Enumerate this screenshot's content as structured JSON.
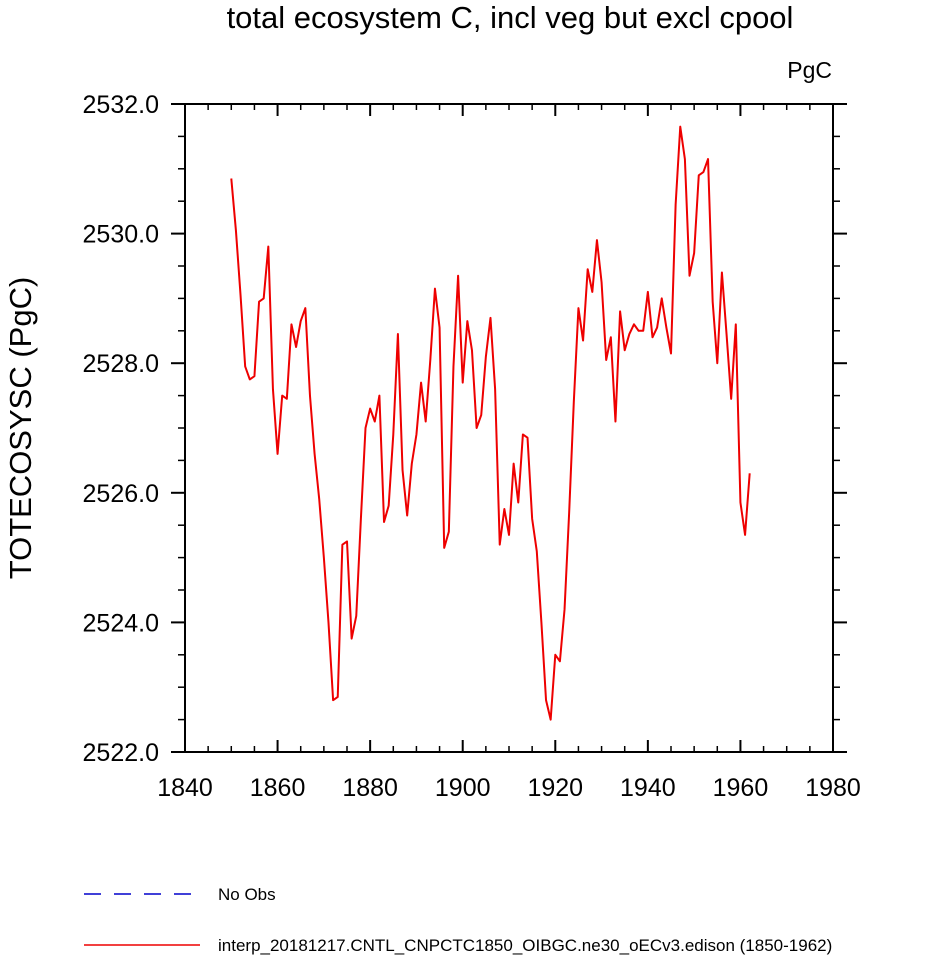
{
  "chart_data": {
    "type": "line",
    "title": "total ecosystem C, incl veg but excl cpool",
    "units_label": "PgC",
    "xlabel": "",
    "ylabel": "TOTECOSYSC  (PgC)",
    "xlim": [
      1840,
      1980
    ],
    "ylim": [
      2522.0,
      2532.0
    ],
    "x_ticks": [
      1840,
      1860,
      1880,
      1900,
      1920,
      1940,
      1960,
      1980
    ],
    "y_ticks": [
      "2522.0",
      "2524.0",
      "2526.0",
      "2528.0",
      "2530.0",
      "2532.0"
    ],
    "legend_position": "bottom-left",
    "series": [
      {
        "name": "No Obs",
        "color": "#0000cc",
        "dash": "dashed",
        "x": [],
        "values": []
      },
      {
        "name": "interp_20181217.CNTL_CNPCTC1850_OIBGC.ne30_oECv3.edison (1850-1962)",
        "color": "#ee0000",
        "dash": "solid",
        "x": [
          1850,
          1851,
          1852,
          1853,
          1854,
          1855,
          1856,
          1857,
          1858,
          1859,
          1860,
          1861,
          1862,
          1863,
          1864,
          1865,
          1866,
          1867,
          1868,
          1869,
          1870,
          1871,
          1872,
          1873,
          1874,
          1875,
          1876,
          1877,
          1878,
          1879,
          1880,
          1881,
          1882,
          1883,
          1884,
          1885,
          1886,
          1887,
          1888,
          1889,
          1890,
          1891,
          1892,
          1893,
          1894,
          1895,
          1896,
          1897,
          1898,
          1899,
          1900,
          1901,
          1902,
          1903,
          1904,
          1905,
          1906,
          1907,
          1908,
          1909,
          1910,
          1911,
          1912,
          1913,
          1914,
          1915,
          1916,
          1917,
          1918,
          1919,
          1920,
          1921,
          1922,
          1923,
          1924,
          1925,
          1926,
          1927,
          1928,
          1929,
          1930,
          1931,
          1932,
          1933,
          1934,
          1935,
          1936,
          1937,
          1938,
          1939,
          1940,
          1941,
          1942,
          1943,
          1944,
          1945,
          1946,
          1947,
          1948,
          1949,
          1950,
          1951,
          1952,
          1953,
          1954,
          1955,
          1956,
          1957,
          1958,
          1959,
          1960,
          1961,
          1962
        ],
        "values": [
          2530.85,
          2530.05,
          2529.05,
          2527.95,
          2527.75,
          2527.8,
          2528.95,
          2529.0,
          2529.8,
          2527.6,
          2526.6,
          2527.5,
          2527.45,
          2528.6,
          2528.25,
          2528.65,
          2528.85,
          2527.5,
          2526.6,
          2525.9,
          2525.0,
          2524.0,
          2522.8,
          2522.85,
          2525.2,
          2525.25,
          2523.75,
          2524.1,
          2525.6,
          2527.0,
          2527.3,
          2527.1,
          2527.5,
          2525.55,
          2525.8,
          2526.9,
          2528.45,
          2526.35,
          2525.65,
          2526.45,
          2526.9,
          2527.7,
          2527.1,
          2528.05,
          2529.15,
          2528.55,
          2525.15,
          2525.4,
          2527.95,
          2529.35,
          2527.7,
          2528.65,
          2528.2,
          2527.0,
          2527.2,
          2528.1,
          2528.7,
          2527.6,
          2525.2,
          2525.75,
          2525.35,
          2526.45,
          2525.85,
          2526.9,
          2526.85,
          2525.6,
          2525.1,
          2524.0,
          2522.8,
          2522.5,
          2523.5,
          2523.4,
          2524.2,
          2525.7,
          2527.4,
          2528.85,
          2528.35,
          2529.45,
          2529.1,
          2529.9,
          2529.25,
          2528.05,
          2528.4,
          2527.1,
          2528.8,
          2528.2,
          2528.45,
          2528.6,
          2528.5,
          2528.5,
          2529.1,
          2528.4,
          2528.55,
          2529.0,
          2528.55,
          2528.15,
          2530.45,
          2531.65,
          2531.15,
          2529.35,
          2529.7,
          2530.9,
          2530.95,
          2531.15,
          2528.95,
          2528.0,
          2529.4,
          2528.45,
          2527.45,
          2528.6,
          2525.85,
          2525.35,
          2526.3
        ]
      }
    ]
  }
}
